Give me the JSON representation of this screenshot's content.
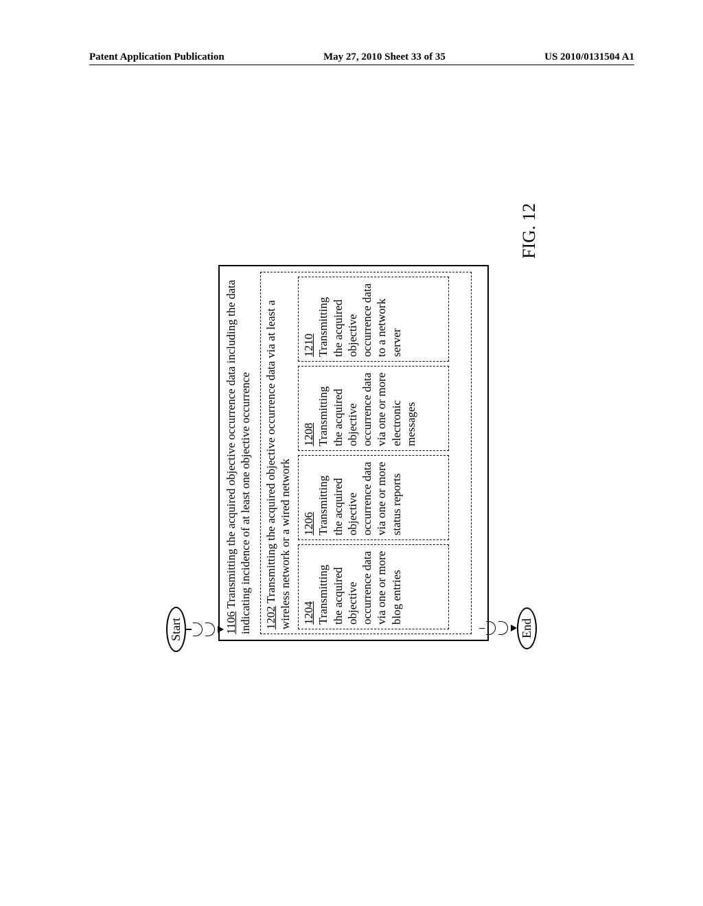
{
  "header": {
    "left": "Patent Application Publication",
    "center": "May 27, 2010  Sheet 33 of 35",
    "right": "US 2010/0131504 A1"
  },
  "flow": {
    "start": "Start",
    "end": "End",
    "main": {
      "ref": "1106",
      "text": "Transmitting the acquired objective occurrence data including the data indicating incidence of at least one objective occurrence"
    },
    "step1202": {
      "ref": "1202",
      "text": "Transmitting the acquired objective occurrence data via at least a wireless network or a wired network"
    },
    "subs": [
      {
        "ref": "1204",
        "text": "Transmitting the acquired objective occurrence data via one or more blog entries"
      },
      {
        "ref": "1206",
        "text": "Transmitting the acquired objective occurrence data via one or more status reports"
      },
      {
        "ref": "1208",
        "text": "Transmitting the acquired objective occurrence data via one or more electronic messages"
      },
      {
        "ref": "1210",
        "text": "Transmitting the acquired objective occurrence data to a network server"
      }
    ],
    "figure_label": "FIG. 12"
  }
}
